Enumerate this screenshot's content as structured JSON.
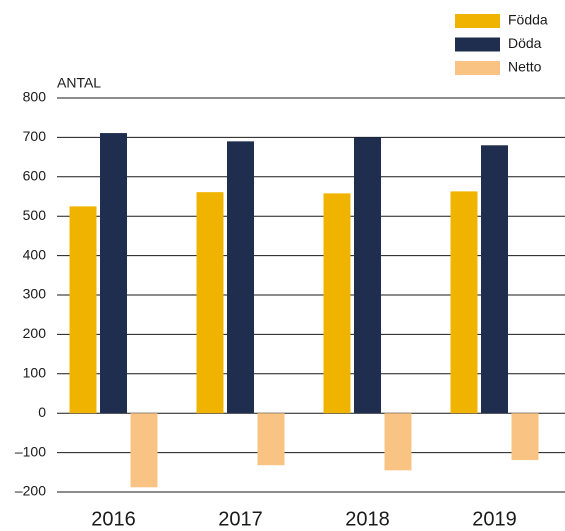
{
  "chart_data": {
    "type": "bar",
    "y_label": "ANTAL",
    "categories": [
      "2016",
      "2017",
      "2018",
      "2019"
    ],
    "series": [
      {
        "name": "Födda",
        "color": "#f0b400",
        "values": [
          525,
          561,
          558,
          563
        ]
      },
      {
        "name": "Döda",
        "color": "#1f2d4e",
        "values": [
          711,
          690,
          700,
          680
        ]
      },
      {
        "name": "Netto",
        "color": "#f9c383",
        "values": [
          -188,
          -132,
          -145,
          -119
        ]
      }
    ],
    "ylim": [
      -200,
      800
    ],
    "yticks": [
      {
        "value": -200,
        "label": "–200"
      },
      {
        "value": -100,
        "label": "–100"
      },
      0,
      100,
      200,
      300,
      400,
      500,
      600,
      700,
      800
    ],
    "grid": true,
    "legend": "top-right"
  }
}
